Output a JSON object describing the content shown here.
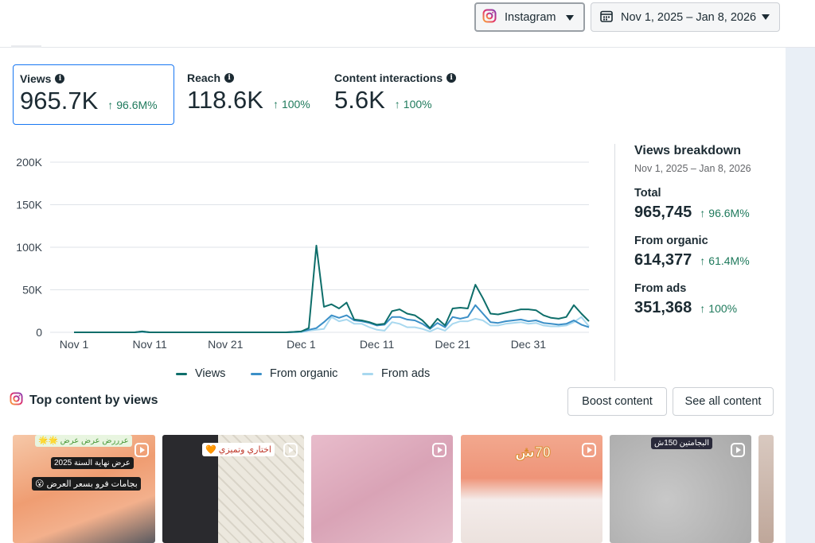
{
  "header": {
    "account_dropdown": "Instagram",
    "date_range_dropdown": "Nov 1, 2025 – Jan 8, 2026"
  },
  "metrics": [
    {
      "label": "Views",
      "value": "965.7K",
      "change": "96.6M%"
    },
    {
      "label": "Reach",
      "value": "118.6K",
      "change": "100%"
    },
    {
      "label": "Content interactions",
      "value": "5.6K",
      "change": "100%"
    }
  ],
  "chart_data": {
    "type": "line",
    "x_ticks": [
      "Nov 1",
      "Nov 11",
      "Nov 21",
      "Dec 1",
      "Dec 11",
      "Dec 21",
      "Dec 31"
    ],
    "y_ticks": [
      "200K",
      "150K",
      "100K",
      "50K",
      "0"
    ],
    "ylim": [
      0,
      200000
    ],
    "x_start": "Nov 1",
    "x_end": "Jan 8",
    "legend_position": "bottom",
    "series": [
      {
        "name": "Views",
        "color": "#0e6e6a",
        "values": [
          0,
          0,
          0,
          0,
          0,
          0,
          0,
          0,
          0,
          1000,
          0,
          0,
          0,
          0,
          0,
          0,
          0,
          0,
          0,
          0,
          0,
          0,
          0,
          0,
          0,
          0,
          0,
          0,
          0,
          500,
          1000,
          5000,
          102000,
          30000,
          33000,
          28000,
          35000,
          15000,
          14000,
          12000,
          9000,
          10000,
          25000,
          27000,
          22000,
          20000,
          14000,
          5000,
          16000,
          8000,
          28000,
          29000,
          28000,
          56000,
          40000,
          22000,
          21000,
          23000,
          25000,
          27000,
          27000,
          26000,
          20000,
          17000,
          16000,
          18000,
          32000,
          22000,
          13000
        ]
      },
      {
        "name": "From organic",
        "color": "#3b8fc7",
        "values": [
          0,
          0,
          0,
          0,
          0,
          0,
          0,
          0,
          0,
          1000,
          0,
          0,
          0,
          0,
          0,
          0,
          0,
          0,
          0,
          0,
          0,
          0,
          0,
          0,
          0,
          0,
          0,
          0,
          0,
          500,
          1000,
          3000,
          5000,
          12000,
          20000,
          17000,
          20000,
          14000,
          13000,
          11000,
          8000,
          9000,
          18000,
          18000,
          15000,
          14000,
          10000,
          4000,
          11000,
          6000,
          18000,
          16000,
          18000,
          32000,
          22000,
          12000,
          11000,
          13000,
          14000,
          15000,
          13000,
          14000,
          11000,
          10000,
          9000,
          10000,
          14000,
          9000,
          6000
        ]
      },
      {
        "name": "From ads",
        "color": "#a8d8ef",
        "values": [
          0,
          0,
          0,
          0,
          0,
          0,
          0,
          0,
          0,
          0,
          0,
          0,
          0,
          0,
          0,
          0,
          0,
          0,
          0,
          0,
          0,
          0,
          0,
          0,
          0,
          0,
          0,
          0,
          0,
          0,
          0,
          2000,
          3000,
          4000,
          18000,
          13000,
          15000,
          10000,
          10000,
          6000,
          3000,
          2000,
          12000,
          10000,
          6000,
          6000,
          4000,
          1000,
          5000,
          2000,
          10000,
          13000,
          13000,
          16000,
          14000,
          8000,
          8000,
          10000,
          11000,
          12000,
          10000,
          11000,
          8000,
          7000,
          7000,
          8000,
          12000,
          18000,
          7000
        ]
      }
    ]
  },
  "breakdown": {
    "title": "Views breakdown",
    "range": "Nov 1, 2025 – Jan 8, 2026",
    "items": [
      {
        "label": "Total",
        "value": "965,745",
        "change": "96.6M%"
      },
      {
        "label": "From organic",
        "value": "614,377",
        "change": "61.4M%"
      },
      {
        "label": "From ads",
        "value": "351,368",
        "change": "100%"
      }
    ]
  },
  "top_content": {
    "title": "Top content by views",
    "boost_button": "Boost content",
    "see_all_button": "See all content",
    "thumbnails": [
      {
        "tags": [
          "عرض نهاية السنة 2025",
          "بجامات فرو بسعر العرض 😮",
          "عرررض عرض عرض 🌟🌟"
        ]
      },
      {
        "tags": [
          "اختاري وتميزي 🧡"
        ]
      },
      {
        "tags": []
      },
      {
        "tags": [
          "70ش"
        ]
      },
      {
        "tags": [
          "البجامتين 150ش"
        ]
      }
    ]
  }
}
